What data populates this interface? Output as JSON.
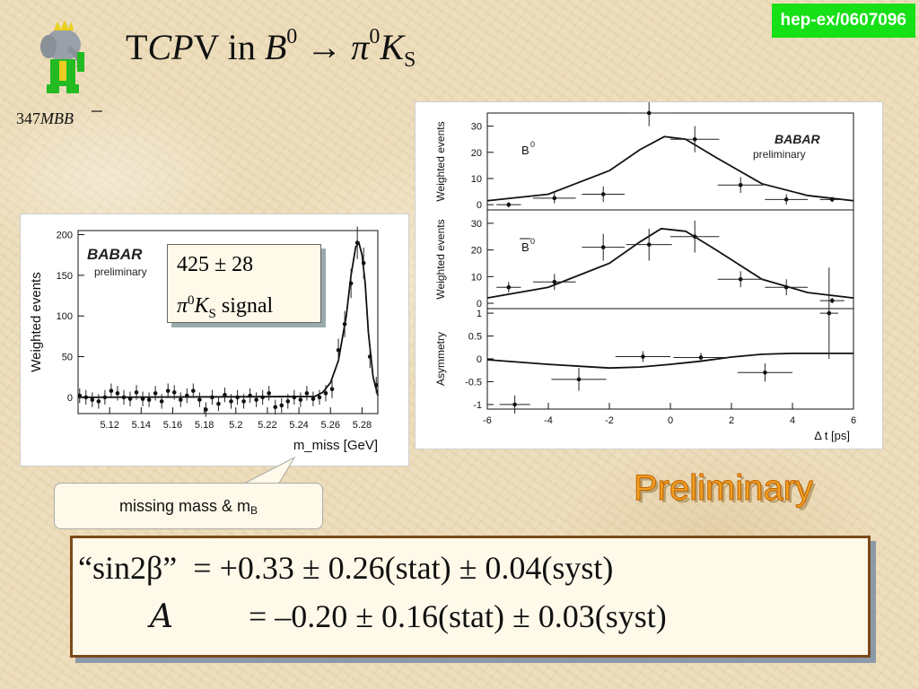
{
  "header": {
    "title_T": "T",
    "title_CP": "CP",
    "title_V": "V in ",
    "title_B": "B",
    "title_B_sup": "0",
    "title_arrow": "→ ",
    "title_pi": "π",
    "title_pi_sup": "0",
    "title_K": "K",
    "title_K_sub": "S",
    "arxiv": "hep-ex/0607096",
    "lumi_number": "347",
    "lumi_text": "MBB"
  },
  "signal_box": {
    "line1": "425 ± 28",
    "line2_pi": "π",
    "line2_sup": "0",
    "line2_K": "K",
    "line2_sub": "S",
    "line2_text": " signal"
  },
  "callout": {
    "text": "missing mass & m",
    "sub": "B"
  },
  "preliminary": "Preliminary",
  "results": {
    "row1_label": "“sin2β”",
    "row1_value": "= +0.33 ± 0.26(stat) ± 0.04(syst)",
    "row2_symbol": "A",
    "row2_value": "= –0.20 ± 0.16(stat) ± 0.03(syst)"
  },
  "chart_data": [
    {
      "type": "scatter",
      "watermark": "BABAR",
      "subtitle": "preliminary",
      "xlabel": "m_miss [GeV]",
      "ylabel": "Weighted events",
      "xlim": [
        5.1,
        5.29
      ],
      "ylim": [
        -20,
        205
      ],
      "xticks": [
        "5.12",
        "5.14",
        "5.16",
        "5.18",
        "5.2",
        "5.22",
        "5.24",
        "5.26",
        "5.28"
      ],
      "yticks": [
        "0",
        "50",
        "100",
        "150",
        "200"
      ],
      "points": {
        "x": [
          5.101,
          5.105,
          5.109,
          5.113,
          5.117,
          5.121,
          5.125,
          5.129,
          5.133,
          5.137,
          5.141,
          5.145,
          5.149,
          5.153,
          5.157,
          5.161,
          5.165,
          5.169,
          5.173,
          5.177,
          5.181,
          5.185,
          5.189,
          5.193,
          5.197,
          5.201,
          5.205,
          5.209,
          5.213,
          5.217,
          5.221,
          5.225,
          5.229,
          5.233,
          5.237,
          5.241,
          5.245,
          5.249,
          5.253,
          5.257,
          5.261,
          5.265,
          5.269,
          5.273,
          5.277,
          5.281,
          5.285,
          5.289
        ],
        "y": [
          2,
          0,
          -3,
          -5,
          0,
          8,
          5,
          0,
          -2,
          6,
          -2,
          -3,
          5,
          -5,
          8,
          6,
          -3,
          2,
          8,
          -3,
          -15,
          0,
          -8,
          3,
          -5,
          0,
          -5,
          2,
          -3,
          0,
          5,
          -12,
          -10,
          -5,
          0,
          -3,
          5,
          -2,
          0,
          5,
          10,
          58,
          90,
          140,
          190,
          165,
          50,
          15
        ],
        "yerr": [
          9,
          9,
          9,
          9,
          9,
          9,
          9,
          9,
          9,
          9,
          9,
          9,
          9,
          9,
          9,
          9,
          9,
          9,
          9,
          9,
          9,
          9,
          9,
          9,
          9,
          9,
          9,
          9,
          9,
          9,
          9,
          9,
          9,
          9,
          9,
          9,
          9,
          9,
          9,
          10,
          11,
          14,
          16,
          18,
          20,
          19,
          14,
          10
        ]
      },
      "fit_line": {
        "x": [
          5.1,
          5.25,
          5.255,
          5.26,
          5.265,
          5.27,
          5.273,
          5.276,
          5.278,
          5.28,
          5.282,
          5.284,
          5.287,
          5.29
        ],
        "y": [
          0,
          1,
          6,
          18,
          45,
          100,
          150,
          185,
          190,
          175,
          140,
          80,
          25,
          2
        ]
      }
    },
    {
      "type": "scatter",
      "panel_label": "B0",
      "watermark": "BABAR",
      "subtitle": "preliminary",
      "ylabel": "Weighted events",
      "xlim": [
        -6,
        6
      ],
      "ylim": [
        -2,
        35
      ],
      "yticks": [
        "0",
        "10",
        "20",
        "30"
      ],
      "points": {
        "x": [
          -5.3,
          -3.8,
          -2.2,
          -0.7,
          0.8,
          2.3,
          3.8,
          5.3
        ],
        "y": [
          0,
          2.5,
          4,
          35,
          25,
          7.5,
          2,
          2
        ],
        "yerr": [
          1,
          2,
          3,
          5,
          5,
          3,
          2,
          1
        ],
        "xerr": [
          0.4,
          0.7,
          0.7,
          0.75,
          0.8,
          0.75,
          0.7,
          0.4
        ]
      },
      "fit_line": {
        "x": [
          -6,
          -4,
          -2,
          -1,
          -0.2,
          0.5,
          1.5,
          3,
          4.5,
          6
        ],
        "y": [
          1.5,
          4,
          13,
          21,
          26,
          25,
          18,
          8,
          3.5,
          1.5
        ]
      }
    },
    {
      "type": "scatter",
      "panel_label": "B0bar",
      "ylabel": "Weighted events",
      "xlim": [
        -6,
        6
      ],
      "ylim": [
        -2,
        35
      ],
      "yticks": [
        "0",
        "10",
        "20",
        "30"
      ],
      "points": {
        "x": [
          -5.3,
          -3.8,
          -2.2,
          -0.7,
          0.8,
          2.3,
          3.8,
          5.3
        ],
        "y": [
          6,
          8,
          21,
          22,
          25,
          9,
          6,
          1
        ],
        "yerr": [
          2,
          3,
          5,
          6,
          6,
          3,
          3,
          1
        ],
        "xerr": [
          0.4,
          0.7,
          0.7,
          0.75,
          0.8,
          0.75,
          0.7,
          0.4
        ]
      },
      "fit_line": {
        "x": [
          -6,
          -4,
          -2,
          -1,
          -0.3,
          0.5,
          1.5,
          3,
          4.5,
          6
        ],
        "y": [
          2,
          6,
          15,
          23,
          28,
          27,
          20,
          9,
          4,
          2
        ]
      }
    },
    {
      "type": "scatter",
      "panel_label": "",
      "xlabel": "Δ t [ps]",
      "ylabel": "Asymmetry",
      "xlim": [
        -6,
        6
      ],
      "ylim": [
        -1.1,
        1.1
      ],
      "xticks": [
        "-6",
        "-4",
        "-2",
        "0",
        "2",
        "4",
        "6"
      ],
      "yticks": [
        "-1",
        "-0.5",
        "0",
        "0.5",
        "1"
      ],
      "points": {
        "x": [
          -5.1,
          -3,
          -0.9,
          1,
          3.1,
          5.2
        ],
        "y": [
          -1,
          -0.45,
          0.05,
          0.03,
          -0.3,
          1
        ],
        "yerr": [
          0.2,
          0.25,
          0.12,
          0.1,
          0.2,
          1.0
        ],
        "xerr": [
          0.5,
          0.9,
          0.9,
          0.9,
          0.9,
          0.3
        ]
      },
      "fit_line": {
        "x": [
          -6,
          -4,
          -2,
          -1,
          0,
          1,
          2,
          3,
          4,
          5,
          6
        ],
        "y": [
          -0.02,
          -0.12,
          -0.2,
          -0.18,
          -0.12,
          -0.05,
          0.04,
          0.1,
          0.12,
          0.12,
          0.12
        ]
      }
    }
  ]
}
